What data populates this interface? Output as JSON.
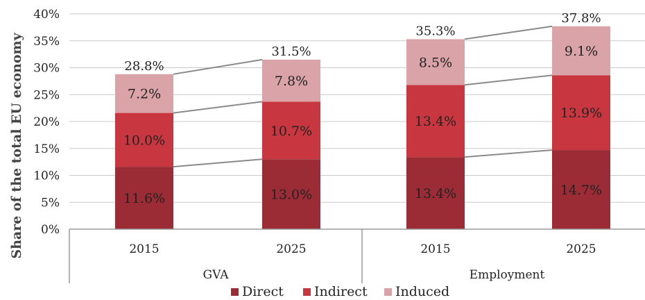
{
  "chart_data": {
    "type": "bar",
    "stacked": true,
    "ylabel": "Share of the total EU economy",
    "ylim": [
      0,
      40
    ],
    "yticks": [
      "0%",
      "5%",
      "10%",
      "15%",
      "20%",
      "25%",
      "30%",
      "35%",
      "40%"
    ],
    "groups": [
      {
        "name": "GVA",
        "categories": [
          "2015",
          "2025"
        ]
      },
      {
        "name": "Employment",
        "categories": [
          "2015",
          "2025"
        ]
      }
    ],
    "categories": [
      "2015",
      "2025",
      "2015",
      "2025"
    ],
    "series": [
      {
        "name": "Direct",
        "color": "#9b2b35",
        "values": [
          11.6,
          13.0,
          13.4,
          14.7
        ],
        "labels": [
          "11.6%",
          "13.0%",
          "13.4%",
          "14.7%"
        ]
      },
      {
        "name": "Indirect",
        "color": "#c8373f",
        "values": [
          10.0,
          10.7,
          13.4,
          13.9
        ],
        "labels": [
          "10.0%",
          "10.7%",
          "13.4%",
          "13.9%"
        ]
      },
      {
        "name": "Induced",
        "color": "#d9a3a7",
        "values": [
          7.2,
          7.8,
          8.5,
          9.1
        ],
        "labels": [
          "7.2%",
          "7.8%",
          "8.5%",
          "9.1%"
        ]
      }
    ],
    "totals": [
      28.8,
      31.5,
      35.3,
      37.8
    ],
    "total_labels": [
      "28.8%",
      "31.5%",
      "35.3%",
      "37.8%"
    ],
    "legend_position": "bottom",
    "grid": true
  }
}
